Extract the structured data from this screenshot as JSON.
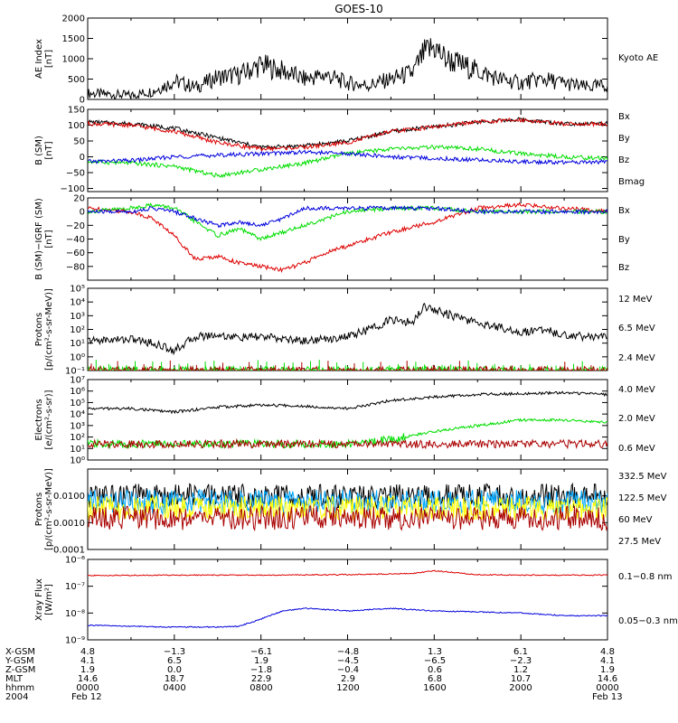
{
  "title": "GOES-10",
  "colors": {
    "black": "#000000",
    "red": "#dd0000",
    "green": "#00dd00",
    "blue": "#0000dd",
    "darkred": "#aa0000",
    "yellow": "#ffff00",
    "cyan": "#00a8ff"
  },
  "chart_data": [
    {
      "type": "line",
      "ylabel": [
        "AE Index",
        "[nT]"
      ],
      "scale": "linear",
      "ylim": [
        0,
        2000
      ],
      "yticks": [
        "0",
        "500",
        "1000",
        "1500",
        "2000"
      ],
      "legend": [
        {
          "label": "Kyoto AE",
          "color": "#000000"
        }
      ],
      "series": [
        {
          "name": "Kyoto AE",
          "color": "#000000",
          "x_hours": [
            0,
            2,
            3,
            4,
            5,
            6,
            7,
            8,
            9,
            10,
            11,
            12,
            13,
            14,
            15,
            15.5,
            16,
            16.5,
            17,
            18,
            19,
            20,
            21,
            22,
            23,
            24
          ],
          "values": [
            150,
            100,
            200,
            450,
            300,
            550,
            600,
            850,
            700,
            500,
            600,
            400,
            350,
            500,
            650,
            1100,
            1300,
            1000,
            900,
            700,
            500,
            400,
            500,
            400,
            300,
            350
          ]
        }
      ]
    },
    {
      "type": "line",
      "ylabel": [
        "B (SM)",
        "[nT]"
      ],
      "scale": "linear",
      "ylim": [
        -110,
        150
      ],
      "yticks": [
        "−100",
        "−50",
        "0",
        "50",
        "100",
        "150"
      ],
      "legend": [
        {
          "label": "Bx",
          "color": "#0000dd"
        },
        {
          "label": "By",
          "color": "#00dd00"
        },
        {
          "label": "Bz",
          "color": "#dd0000"
        },
        {
          "label": "Bmag",
          "color": "#000000"
        }
      ],
      "series": [
        {
          "name": "Bmag",
          "color": "#000000",
          "x_hours": [
            0,
            2,
            4,
            6,
            8,
            10,
            12,
            14,
            16,
            18,
            20,
            22,
            24
          ],
          "values": [
            110,
            105,
            90,
            60,
            30,
            35,
            50,
            80,
            95,
            110,
            118,
            105,
            105
          ]
        },
        {
          "name": "Bz",
          "color": "#dd0000",
          "x_hours": [
            0,
            2,
            4,
            6,
            8,
            10,
            12,
            14,
            16,
            18,
            20,
            22,
            24
          ],
          "values": [
            105,
            100,
            80,
            45,
            25,
            30,
            45,
            80,
            95,
            110,
            117,
            104,
            104
          ]
        },
        {
          "name": "By",
          "color": "#00dd00",
          "x_hours": [
            0,
            2,
            4,
            6,
            8,
            10,
            12,
            14,
            16,
            18,
            20,
            22,
            24
          ],
          "values": [
            -15,
            -20,
            -30,
            -60,
            -40,
            -20,
            10,
            25,
            30,
            25,
            10,
            0,
            -5
          ]
        },
        {
          "name": "Bx",
          "color": "#0000dd",
          "x_hours": [
            0,
            2,
            4,
            6,
            8,
            10,
            12,
            14,
            16,
            18,
            20,
            22,
            24
          ],
          "values": [
            -15,
            -12,
            0,
            5,
            10,
            15,
            10,
            0,
            -5,
            -10,
            -15,
            -18,
            -15
          ]
        }
      ]
    },
    {
      "type": "line",
      "ylabel": [
        "B (SM)−IGRF (SM)",
        "[nT]"
      ],
      "scale": "linear",
      "ylim": [
        -100,
        20
      ],
      "yticks": [
        "−80",
        "−60",
        "−40",
        "−20",
        "0",
        "20"
      ],
      "legend": [
        {
          "label": "Bx",
          "color": "#0000dd"
        },
        {
          "label": "By",
          "color": "#00dd00"
        },
        {
          "label": "Bz",
          "color": "#dd0000"
        }
      ],
      "series": [
        {
          "name": "Bz",
          "color": "#dd0000",
          "x_hours": [
            0,
            2,
            3,
            4,
            5,
            6,
            7,
            8,
            9,
            10,
            11,
            12,
            14,
            16,
            18,
            20,
            22,
            24
          ],
          "values": [
            5,
            0,
            -10,
            -35,
            -70,
            -65,
            -75,
            -80,
            -85,
            -75,
            -60,
            -50,
            -30,
            -15,
            5,
            10,
            5,
            0
          ]
        },
        {
          "name": "By",
          "color": "#00dd00",
          "x_hours": [
            0,
            2,
            3,
            4,
            5,
            6,
            7,
            8,
            9,
            10,
            11,
            12,
            14,
            16,
            18,
            20,
            22,
            24
          ],
          "values": [
            0,
            5,
            10,
            5,
            -15,
            -35,
            -25,
            -40,
            -30,
            -20,
            -10,
            0,
            5,
            5,
            0,
            0,
            0,
            0
          ]
        },
        {
          "name": "Bx",
          "color": "#0000dd",
          "x_hours": [
            0,
            2,
            3,
            4,
            5,
            6,
            7,
            8,
            9,
            10,
            11,
            12,
            14,
            16,
            18,
            20,
            22,
            24
          ],
          "values": [
            0,
            0,
            5,
            0,
            -10,
            -20,
            -15,
            -20,
            -10,
            5,
            5,
            5,
            5,
            5,
            0,
            0,
            0,
            0
          ]
        }
      ]
    },
    {
      "type": "line",
      "ylabel": [
        "Protons",
        "[p/(cm²-s-sr-MeV)]"
      ],
      "scale": "log",
      "ylim": [
        0.1,
        100000
      ],
      "yticks": [
        "10⁻¹",
        "10⁰",
        "10¹",
        "10²",
        "10³",
        "10⁴",
        "10⁵"
      ],
      "legend": [
        {
          "label": "12 MeV",
          "color": "#aa0000"
        },
        {
          "label": "6.5 MeV",
          "color": "#00dd00"
        },
        {
          "label": "2.4 MeV",
          "color": "#000000"
        }
      ],
      "series": [
        {
          "name": "2.4 MeV",
          "color": "#000000",
          "x_hours": [
            0,
            2,
            3,
            4,
            5,
            6,
            7,
            8,
            9,
            10,
            11,
            12,
            13,
            14,
            15,
            15.5,
            16,
            17,
            18,
            19,
            20,
            21,
            22,
            23,
            24
          ],
          "values": [
            15,
            20,
            10,
            3,
            30,
            40,
            25,
            30,
            20,
            15,
            20,
            30,
            100,
            500,
            300,
            5000,
            3000,
            800,
            300,
            150,
            60,
            100,
            40,
            30,
            30
          ]
        },
        {
          "name": "6.5 MeV",
          "color": "#00dd00",
          "x_hours": [
            0,
            24
          ],
          "values": [
            0.1,
            0.1
          ]
        },
        {
          "name": "12 MeV",
          "color": "#aa0000",
          "x_hours": [
            0,
            24
          ],
          "values": [
            0.1,
            0.1
          ]
        }
      ]
    },
    {
      "type": "line",
      "ylabel": [
        "Electrons",
        "[e/(cm²-s-sr)]"
      ],
      "scale": "log",
      "ylim": [
        1,
        10000000
      ],
      "yticks": [
        "10⁰",
        "10¹",
        "10²",
        "10³",
        "10⁴",
        "10⁵",
        "10⁶",
        "10⁷"
      ],
      "legend": [
        {
          "label": "4.0 MeV",
          "color": "#aa0000"
        },
        {
          "label": "2.0 MeV",
          "color": "#00dd00"
        },
        {
          "label": "0.6 MeV",
          "color": "#000000"
        }
      ],
      "series": [
        {
          "name": "0.6 MeV",
          "color": "#000000",
          "x_hours": [
            0,
            2,
            4,
            6,
            8,
            10,
            12,
            14,
            16,
            18,
            20,
            22,
            24
          ],
          "values": [
            30000,
            30000,
            15000,
            40000,
            60000,
            50000,
            30000,
            150000,
            300000,
            500000,
            600000,
            700000,
            500000
          ]
        },
        {
          "name": "2.0 MeV",
          "color": "#00dd00",
          "x_hours": [
            0,
            2,
            4,
            6,
            8,
            10,
            12,
            14,
            16,
            18,
            20,
            22,
            24
          ],
          "values": [
            25,
            25,
            25,
            25,
            25,
            25,
            25,
            60,
            300,
            1000,
            3000,
            3000,
            2000
          ]
        },
        {
          "name": "4.0 MeV",
          "color": "#aa0000",
          "x_hours": [
            0,
            24
          ],
          "values": [
            25,
            25
          ]
        }
      ]
    },
    {
      "type": "line",
      "ylabel": [
        "Protons",
        "[p/(cm²-s-sr-MeV)]"
      ],
      "scale": "log",
      "ylim": [
        0.0001,
        0.1
      ],
      "yticks": [
        "0.0001",
        "0.0010",
        "0.0100"
      ],
      "legend": [
        {
          "label": "332.5 MeV",
          "color": "#aa0000"
        },
        {
          "label": "122.5 MeV",
          "color": "#ffff00"
        },
        {
          "label": "60 MeV",
          "color": "#00a8ff"
        },
        {
          "label": "27.5 MeV",
          "color": "#000000"
        }
      ],
      "series": [
        {
          "name": "27.5 MeV",
          "color": "#000000",
          "x_hours": [
            0,
            24
          ],
          "values": [
            0.01,
            0.01
          ]
        },
        {
          "name": "60 MeV",
          "color": "#00a8ff",
          "x_hours": [
            0,
            24
          ],
          "values": [
            0.006,
            0.006
          ]
        },
        {
          "name": "122.5 MeV",
          "color": "#ffff00",
          "x_hours": [
            0,
            24
          ],
          "values": [
            0.0035,
            0.0035
          ]
        },
        {
          "name": "332.5 MeV",
          "color": "#aa0000",
          "x_hours": [
            0,
            24
          ],
          "values": [
            0.0015,
            0.0015
          ]
        }
      ]
    },
    {
      "type": "line",
      "ylabel": [
        "Xray Flux",
        "[W/m²]"
      ],
      "scale": "log",
      "ylim": [
        1e-09,
        1e-06
      ],
      "yticks": [
        "10⁻⁹",
        "10⁻⁸",
        "10⁻⁷",
        "10⁻⁶"
      ],
      "legend": [
        {
          "label": "0.1−0.8 nm",
          "color": "#dd0000"
        },
        {
          "label": "0.05−0.3 nm",
          "color": "#0000dd"
        }
      ],
      "series": [
        {
          "name": "0.1−0.8 nm",
          "color": "#dd0000",
          "x_hours": [
            0,
            4,
            8,
            12,
            15,
            16,
            18,
            20,
            24
          ],
          "values": [
            2.5e-07,
            2.6e-07,
            2.6e-07,
            2.7e-07,
            3e-07,
            3.8e-07,
            2.7e-07,
            2.6e-07,
            2.6e-07
          ]
        },
        {
          "name": "0.05−0.3 nm",
          "color": "#0000dd",
          "x_hours": [
            0,
            2,
            4,
            6,
            7,
            8,
            9,
            10,
            12,
            14,
            16,
            18,
            20,
            22,
            24
          ],
          "values": [
            3.5e-09,
            3.2e-09,
            3e-09,
            3e-09,
            3.2e-09,
            6e-09,
            1.2e-08,
            1.5e-08,
            1.2e-08,
            1.5e-08,
            1.2e-08,
            1.1e-08,
            1e-08,
            8e-09,
            8e-09
          ]
        }
      ]
    }
  ],
  "footer": {
    "rows": [
      {
        "label": "X-GSM",
        "values": [
          "4.8",
          "−1.3",
          "−6.1",
          "−4.8",
          "1.3",
          "6.1",
          "4.8"
        ]
      },
      {
        "label": "Y-GSM",
        "values": [
          "4.1",
          "6.5",
          "1.9",
          "−4.5",
          "−6.5",
          "−2.3",
          "4.1"
        ]
      },
      {
        "label": "Z-GSM",
        "values": [
          "1.9",
          "0.0",
          "−1.8",
          "−0.4",
          "0.6",
          "1.2",
          "1.9"
        ]
      },
      {
        "label": "MLT",
        "values": [
          "14.6",
          "18.7",
          "22.9",
          "2.9",
          "6.8",
          "10.7",
          "14.6"
        ]
      },
      {
        "label": "hhmm",
        "values": [
          "0000",
          "0400",
          "0800",
          "1200",
          "1600",
          "2000",
          "0000"
        ]
      }
    ],
    "year": "2004",
    "start_date": "Feb 12",
    "end_date": "Feb 13"
  }
}
